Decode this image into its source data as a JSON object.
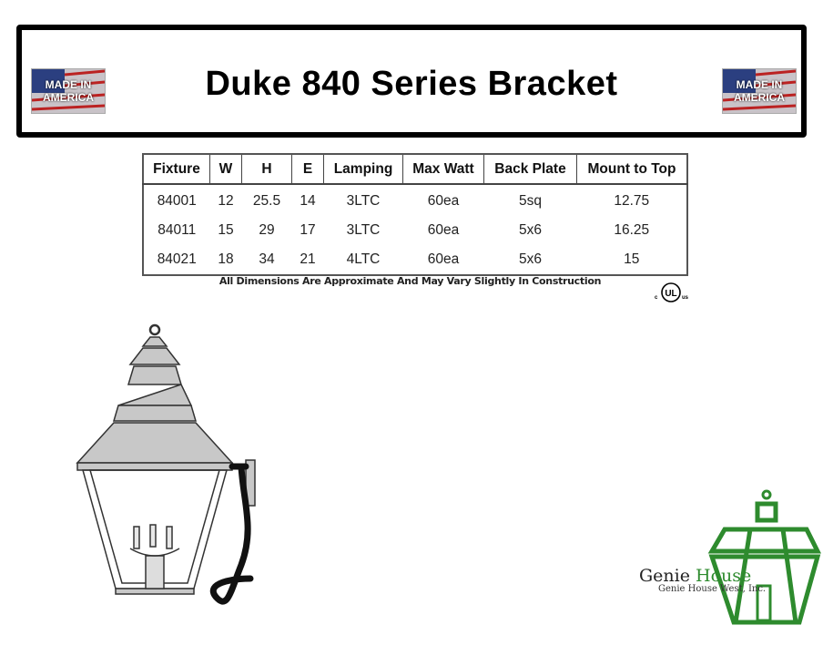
{
  "header": {
    "title": "Duke 840 Series Bracket",
    "badge_text": "MADE IN AMERICA"
  },
  "table": {
    "columns": [
      "Fixture",
      "W",
      "H",
      "E",
      "Lamping",
      "Max Watt",
      "Back Plate",
      "Mount to Top"
    ],
    "rows": [
      [
        "84001",
        "12",
        "25.5",
        "14",
        "3LTC",
        "60ea",
        "5sq",
        "12.75"
      ],
      [
        "84011",
        "15",
        "29",
        "17",
        "3LTC",
        "60ea",
        "5x6",
        "16.25"
      ],
      [
        "84021",
        "18",
        "34",
        "21",
        "4LTC",
        "60ea",
        "5x6",
        "15"
      ]
    ]
  },
  "note": "All Dimensions Are Approximate And May Vary Slightly In Construction",
  "certification": {
    "mark": "UL",
    "left": "c",
    "right": "us"
  },
  "brand": {
    "name_1": "Genie",
    "name_2": "House",
    "subtitle": "Genie House West, Inc.",
    "color": "#2e8b2e"
  }
}
